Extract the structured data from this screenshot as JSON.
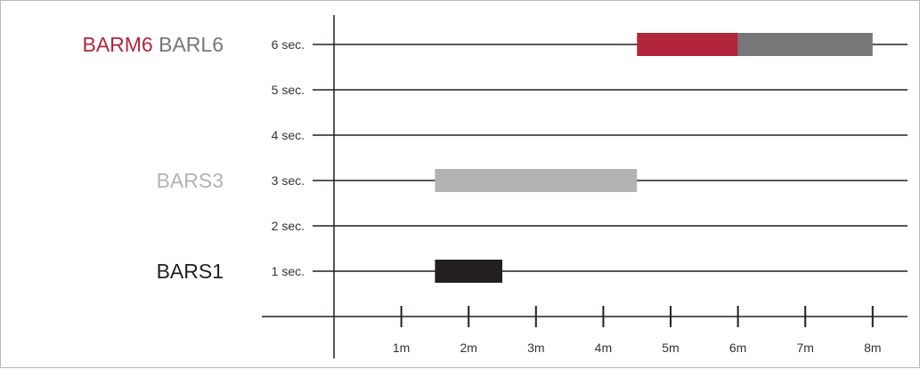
{
  "chart_data": {
    "type": "bar",
    "orientation": "horizontal-range",
    "y_ticks": [
      {
        "value": 1,
        "label": "1 sec."
      },
      {
        "value": 2,
        "label": "2 sec."
      },
      {
        "value": 3,
        "label": "3 sec."
      },
      {
        "value": 4,
        "label": "4 sec."
      },
      {
        "value": 5,
        "label": "5 sec."
      },
      {
        "value": 6,
        "label": "6 sec."
      }
    ],
    "x_ticks": [
      {
        "value": 1,
        "label": "1m"
      },
      {
        "value": 2,
        "label": "2m"
      },
      {
        "value": 3,
        "label": "3m"
      },
      {
        "value": 4,
        "label": "4m"
      },
      {
        "value": 5,
        "label": "5m"
      },
      {
        "value": 6,
        "label": "6m"
      },
      {
        "value": 7,
        "label": "7m"
      },
      {
        "value": 8,
        "label": "8m"
      }
    ],
    "xlim": [
      0,
      8.6
    ],
    "ylim": [
      0,
      6
    ],
    "grid": "horizontal",
    "series": [
      {
        "name": "BARS1",
        "y": 1,
        "x_start": 1.5,
        "x_end": 2.5,
        "color": "#231f20"
      },
      {
        "name": "BARS3",
        "y": 3,
        "x_start": 1.5,
        "x_end": 4.5,
        "color": "#b3b3b5"
      },
      {
        "name": "BARM6",
        "y": 6,
        "x_start": 4.5,
        "x_end": 6.0,
        "color": "#b2263b"
      },
      {
        "name": "BARL6",
        "y": 6,
        "x_start": 6.0,
        "x_end": 8.0,
        "color": "#77777a"
      }
    ],
    "row_labels": [
      {
        "y": 6,
        "parts": [
          {
            "text": "BARM6",
            "color": "#b2263b"
          },
          {
            "text": "BARL6",
            "color": "#77777a"
          }
        ]
      },
      {
        "y": 3,
        "parts": [
          {
            "text": "BARS3",
            "color": "#b3b3b5"
          }
        ]
      },
      {
        "y": 1,
        "parts": [
          {
            "text": "BARS1",
            "color": "#231f20"
          }
        ]
      }
    ]
  }
}
